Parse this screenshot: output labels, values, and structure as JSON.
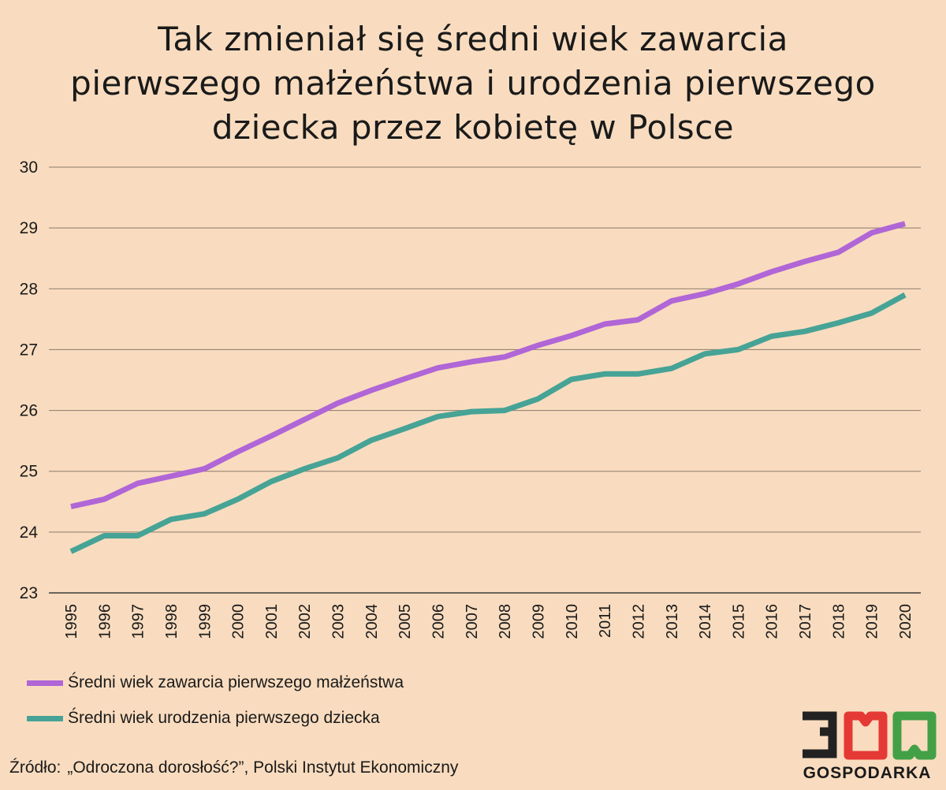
{
  "title_lines": [
    "Tak zmieniał się średni wiek zawarcia",
    "pierwszego małżeństwa i urodzenia pierwszego",
    "dziecka przez kobietę w Polsce"
  ],
  "source": {
    "prefix": "Źródło:",
    "text": "„Odroczona dorosłość?”, Polski Instytut Ekonomiczny"
  },
  "logo": {
    "number": "300",
    "text": "GOSPODARKA",
    "colors": {
      "three": "#222222",
      "first_zero": "#e53935",
      "second_zero": "#43a047"
    }
  },
  "chart_data": {
    "type": "line",
    "title": "Tak zmieniał się średni wiek zawarcia pierwszego małżeństwa i urodzenia pierwszego dziecka przez kobietę w Polsce",
    "xlabel": "",
    "ylabel": "",
    "ylim": [
      23,
      30
    ],
    "yticks": [
      23,
      24,
      25,
      26,
      27,
      28,
      29,
      30
    ],
    "grid": true,
    "legend_position": "bottom-left",
    "x": [
      "1995",
      "1996",
      "1997",
      "1998",
      "1999",
      "2000",
      "2001",
      "2002",
      "2003",
      "2004",
      "2005",
      "2006",
      "2007",
      "2008",
      "2009",
      "2010",
      "2011",
      "2012",
      "2013",
      "2014",
      "2015",
      "2016",
      "2017",
      "2018",
      "2019",
      "2020"
    ],
    "series": [
      {
        "name": "Średni wiek zawarcia pierwszego małżeństwa",
        "color": "#b066d6",
        "values": [
          24.42,
          24.54,
          24.8,
          24.92,
          25.04,
          25.32,
          25.58,
          25.85,
          26.12,
          26.33,
          26.52,
          26.7,
          26.8,
          26.88,
          27.07,
          27.23,
          27.42,
          27.49,
          27.8,
          27.92,
          28.08,
          28.28,
          28.45,
          28.6,
          28.92,
          29.07
        ]
      },
      {
        "name": "Średni wiek urodzenia pierwszego dziecka",
        "color": "#46a396",
        "values": [
          23.68,
          23.94,
          23.94,
          24.21,
          24.3,
          24.54,
          24.83,
          25.04,
          25.22,
          25.51,
          25.7,
          25.9,
          25.98,
          26.0,
          26.19,
          26.51,
          26.6,
          26.6,
          26.69,
          26.93,
          27.0,
          27.22,
          27.3,
          27.44,
          27.6,
          27.9
        ]
      }
    ]
  }
}
